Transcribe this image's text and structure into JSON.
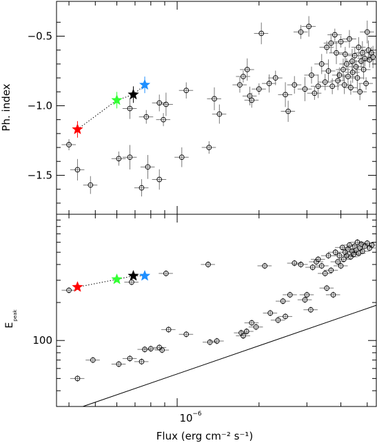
{
  "chart_data": [
    {
      "type": "scatter",
      "title": "",
      "xlabel": "",
      "ylabel": "Ph. index",
      "x_scale": "log",
      "xlim": [
        3.6e-07,
        5.4e-06
      ],
      "ylim": [
        -1.78,
        -0.25
      ],
      "yticks": [
        -0.5,
        -1.0,
        -1.5
      ],
      "ytick_labels": [
        "−0.5",
        "−1.0",
        "−1.5"
      ],
      "points": [
        [
          4e-07,
          -1.28
        ],
        [
          4.3e-07,
          -1.46
        ],
        [
          4.8e-07,
          -1.57
        ],
        [
          6.1e-07,
          -1.38
        ],
        [
          6.7e-07,
          -1.37
        ],
        [
          6.7e-07,
          -1.02
        ],
        [
          7.4e-07,
          -1.59
        ],
        [
          7.7e-07,
          -1.08
        ],
        [
          7.8e-07,
          -1.44
        ],
        [
          8.6e-07,
          -1.53
        ],
        [
          8.6e-07,
          -0.98
        ],
        [
          8.9e-07,
          -1.1
        ],
        [
          9.1e-07,
          -0.99
        ],
        [
          1.04e-06,
          -1.37
        ],
        [
          1.08e-06,
          -0.89
        ],
        [
          1.31e-06,
          -1.3
        ],
        [
          1.37e-06,
          -0.95
        ],
        [
          1.43e-06,
          -1.06
        ],
        [
          1.7e-06,
          -0.85
        ],
        [
          1.75e-06,
          -0.79
        ],
        [
          1.81e-06,
          -0.74
        ],
        [
          1.85e-06,
          -0.93
        ],
        [
          1.88e-06,
          -0.96
        ],
        [
          2e-06,
          -0.88
        ],
        [
          2.04e-06,
          -0.48
        ],
        [
          2.18e-06,
          -0.84
        ],
        [
          2.3e-06,
          -0.8
        ],
        [
          2.5e-06,
          -0.92
        ],
        [
          2.56e-06,
          -1.04
        ],
        [
          2.7e-06,
          -0.85
        ],
        [
          2.85e-06,
          -0.47
        ],
        [
          2.95e-06,
          -0.88
        ],
        [
          3.05e-06,
          -0.43
        ],
        [
          3.12e-06,
          -0.78
        ],
        [
          3.2e-06,
          -0.91
        ],
        [
          3.3e-06,
          -0.86
        ],
        [
          3.4e-06,
          -0.7
        ],
        [
          3.5e-06,
          -0.83
        ],
        [
          3.55e-06,
          -0.58
        ],
        [
          3.6e-06,
          -0.75
        ],
        [
          3.68e-06,
          -0.55
        ],
        [
          3.72e-06,
          -0.86
        ],
        [
          3.8e-06,
          -0.49
        ],
        [
          3.85e-06,
          -0.62
        ],
        [
          3.9e-06,
          -0.82
        ],
        [
          3.95e-06,
          -0.78
        ],
        [
          4e-06,
          -0.54
        ],
        [
          4.08e-06,
          -0.74
        ],
        [
          4.12e-06,
          -0.85
        ],
        [
          4.15e-06,
          -0.63
        ],
        [
          4.2e-06,
          -0.7
        ],
        [
          4.25e-06,
          -0.79
        ],
        [
          4.3e-06,
          -0.52
        ],
        [
          4.35e-06,
          -0.87
        ],
        [
          4.4e-06,
          -0.68
        ],
        [
          4.42e-06,
          -0.76
        ],
        [
          4.5e-06,
          -0.64
        ],
        [
          4.55e-06,
          -0.72
        ],
        [
          4.6e-06,
          -0.8
        ],
        [
          4.65e-06,
          -0.58
        ],
        [
          4.7e-06,
          -0.9
        ],
        [
          4.75e-06,
          -0.68
        ],
        [
          4.8e-06,
          -0.62
        ],
        [
          4.85e-06,
          -0.74
        ],
        [
          4.9e-06,
          -0.66
        ],
        [
          4.95e-06,
          -0.84
        ],
        [
          5e-06,
          -0.47
        ],
        [
          5.05e-06,
          -0.6
        ],
        [
          5.1e-06,
          -0.67
        ],
        [
          5.18e-06,
          -0.62
        ],
        [
          5.25e-06,
          -0.65
        ]
      ],
      "highlighted": [
        {
          "x": 4.3e-07,
          "y": -1.17,
          "color": "#ff0000"
        },
        {
          "x": 6e-07,
          "y": -0.96,
          "color": "#33ff33"
        },
        {
          "x": 6.9e-07,
          "y": -0.92,
          "color": "#000000"
        },
        {
          "x": 7.6e-07,
          "y": -0.85,
          "color": "#1e8fff"
        }
      ],
      "grid": false,
      "legend": "none"
    },
    {
      "type": "scatter",
      "title": "",
      "xlabel": "Flux (erg cm⁻² s⁻¹)",
      "ylabel": "E",
      "ylabel_sub": "peak",
      "x_scale": "log",
      "y_scale": "log",
      "xlim": [
        3.6e-07,
        5.4e-06
      ],
      "ylim": [
        30,
        1000
      ],
      "yticks": [
        100
      ],
      "ytick_labels": [
        "100"
      ],
      "xticks": [
        1e-06
      ],
      "xtick_labels_base": "10",
      "xtick_labels_exp": "−6",
      "points": [
        [
          4e-07,
          250
        ],
        [
          4.3e-07,
          50
        ],
        [
          4.9e-07,
          70
        ],
        [
          6.1e-07,
          65
        ],
        [
          6.7e-07,
          72
        ],
        [
          6.8e-07,
          290
        ],
        [
          7.4e-07,
          68
        ],
        [
          7.6e-07,
          85
        ],
        [
          8e-07,
          86
        ],
        [
          8.6e-07,
          88
        ],
        [
          8.8e-07,
          84
        ],
        [
          9.1e-07,
          340
        ],
        [
          9.3e-07,
          122
        ],
        [
          1.08e-06,
          112
        ],
        [
          1.3e-06,
          400
        ],
        [
          1.32e-06,
          97
        ],
        [
          1.4e-06,
          99
        ],
        [
          1.72e-06,
          115
        ],
        [
          1.75e-06,
          109
        ],
        [
          1.8e-06,
          118
        ],
        [
          1.88e-06,
          138
        ],
        [
          1.95e-06,
          128
        ],
        [
          2.1e-06,
          390
        ],
        [
          2.2e-06,
          165
        ],
        [
          2.35e-06,
          145
        ],
        [
          2.45e-06,
          205
        ],
        [
          2.5e-06,
          155
        ],
        [
          2.6e-06,
          230
        ],
        [
          2.7e-06,
          410
        ],
        [
          2.85e-06,
          400
        ],
        [
          2.95e-06,
          210
        ],
        [
          3e-06,
          230
        ],
        [
          3.1e-06,
          175
        ],
        [
          3.15e-06,
          380
        ],
        [
          3.25e-06,
          420
        ],
        [
          3.3e-06,
          440
        ],
        [
          3.4e-06,
          390
        ],
        [
          3.5e-06,
          340
        ],
        [
          3.55e-06,
          260
        ],
        [
          3.6e-06,
          470
        ],
        [
          3.68e-06,
          360
        ],
        [
          3.75e-06,
          230
        ],
        [
          3.82e-06,
          500
        ],
        [
          3.9e-06,
          420
        ],
        [
          3.95e-06,
          470
        ],
        [
          4e-06,
          390
        ],
        [
          4.05e-06,
          545
        ],
        [
          4.1e-06,
          440
        ],
        [
          4.15e-06,
          500
        ],
        [
          4.2e-06,
          470
        ],
        [
          4.25e-06,
          530
        ],
        [
          4.3e-06,
          570
        ],
        [
          4.35e-06,
          460
        ],
        [
          4.4e-06,
          510
        ],
        [
          4.45e-06,
          480
        ],
        [
          4.5e-06,
          560
        ],
        [
          4.55e-06,
          520
        ],
        [
          4.6e-06,
          600
        ],
        [
          4.65e-06,
          490
        ],
        [
          4.7e-06,
          540
        ],
        [
          4.75e-06,
          580
        ],
        [
          4.8e-06,
          510
        ],
        [
          4.9e-06,
          560
        ],
        [
          5e-06,
          590
        ],
        [
          5.1e-06,
          540
        ],
        [
          5.2e-06,
          570
        ]
      ],
      "highlighted": [
        {
          "x": 4.3e-07,
          "y": 265,
          "color": "#ff0000"
        },
        {
          "x": 6e-07,
          "y": 305,
          "color": "#33ff33"
        },
        {
          "x": 6.9e-07,
          "y": 325,
          "color": "#000000"
        },
        {
          "x": 7.6e-07,
          "y": 325,
          "color": "#1e8fff"
        }
      ],
      "reference_line": [
        [
          4.5e-07,
          30
        ],
        [
          5.4e-06,
          190
        ]
      ],
      "grid": false,
      "legend": "none"
    }
  ]
}
